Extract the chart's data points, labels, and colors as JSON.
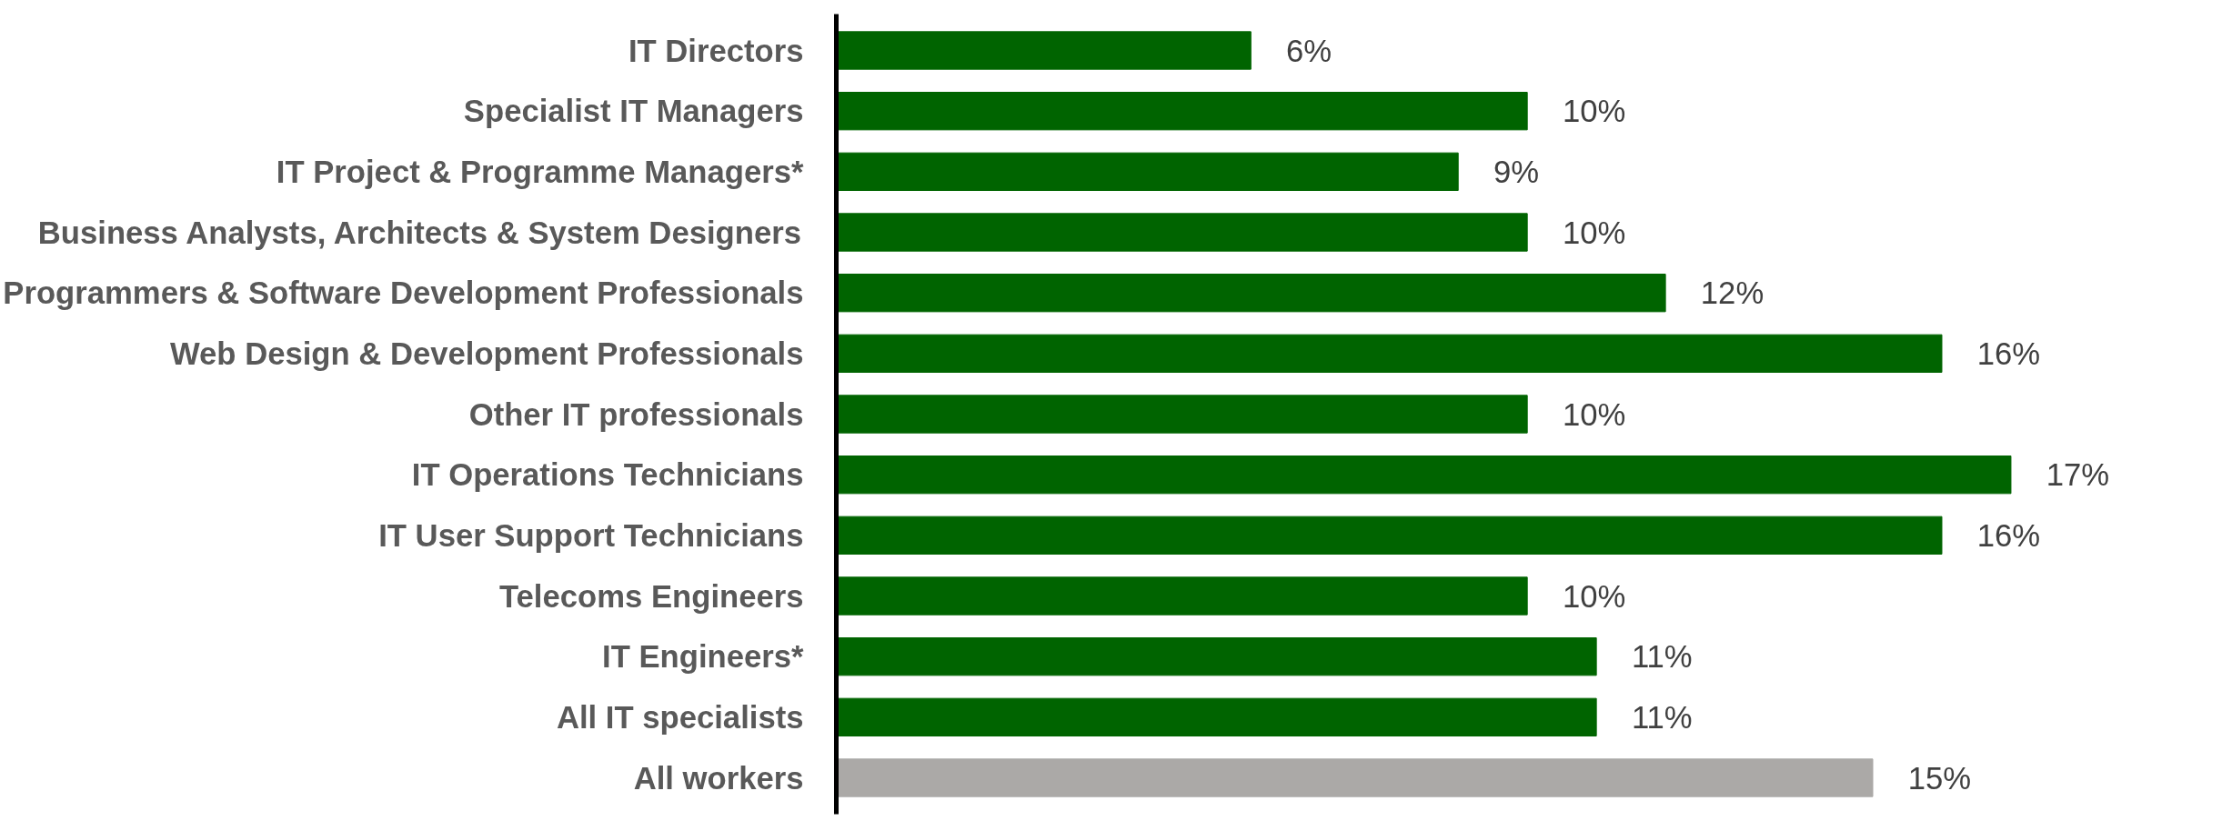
{
  "chart_data": {
    "type": "bar",
    "orientation": "horizontal",
    "categories": [
      "IT Directors",
      "Specialist IT Managers",
      "IT Project & Programme Managers*",
      "Business Analysts, Architects & System Designers",
      "Programmers & Software Development Professionals",
      "Web Design & Development Professionals",
      "Other IT professionals",
      "IT Operations Technicians",
      "IT User Support Technicians",
      "Telecoms Engineers",
      "IT Engineers*",
      "All IT specialists",
      "All workers"
    ],
    "values": [
      6,
      10,
      9,
      10,
      12,
      16,
      10,
      17,
      16,
      10,
      11,
      11,
      15
    ],
    "value_labels": [
      "6%",
      "10%",
      "9%",
      "10%",
      "12%",
      "16%",
      "10%",
      "17%",
      "16%",
      "10%",
      "11%",
      "11%",
      "15%"
    ],
    "colors": [
      "#006400",
      "#006400",
      "#006400",
      "#006400",
      "#006400",
      "#006400",
      "#006400",
      "#006400",
      "#006400",
      "#006400",
      "#006400",
      "#006400",
      "#aba9a7"
    ],
    "grid": false
  }
}
